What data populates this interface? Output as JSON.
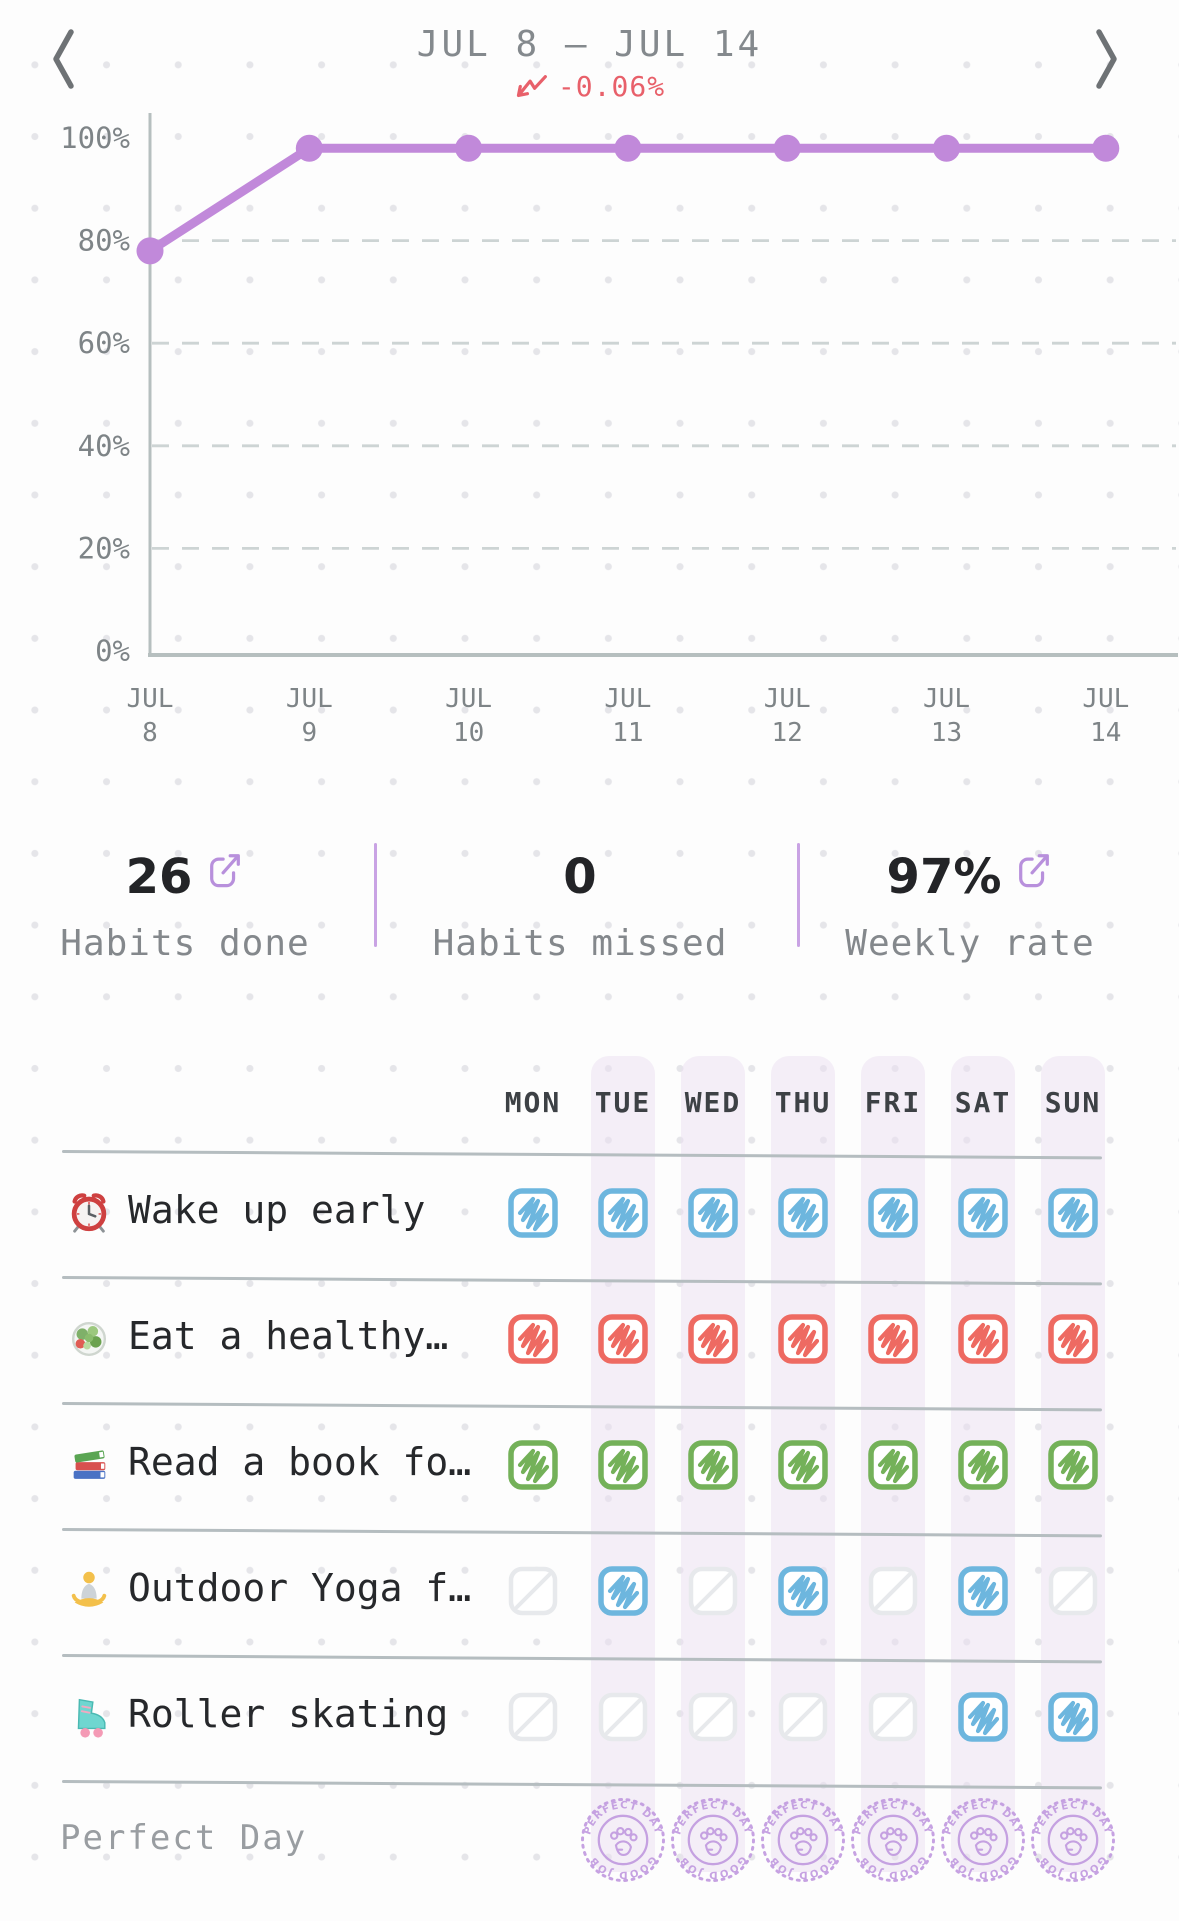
{
  "header": {
    "title": "JUL 8 — JUL 14",
    "trend_value": "-0.06%"
  },
  "chart_data": {
    "type": "line",
    "categories": [
      "JUL 8",
      "JUL 9",
      "JUL 10",
      "JUL 11",
      "JUL 12",
      "JUL 13",
      "JUL 14"
    ],
    "values": [
      78,
      98,
      98,
      98,
      98,
      98,
      98
    ],
    "yticks": [
      100,
      80,
      60,
      40,
      20,
      0
    ],
    "ylim": [
      0,
      100
    ],
    "title": "",
    "xlabel": "",
    "ylabel": "",
    "grid": "dashed-horizontal",
    "legend": "none",
    "line_color": "#c189da"
  },
  "stats": [
    {
      "value": "26",
      "label": "Habits done",
      "share_icon": true
    },
    {
      "value": "0",
      "label": "Habits missed",
      "share_icon": false
    },
    {
      "value": "97%",
      "label": "Weekly rate",
      "share_icon": true
    }
  ],
  "week_table": {
    "days": [
      "MON",
      "TUE",
      "WED",
      "THU",
      "FRI",
      "SAT",
      "SUN"
    ],
    "habits": [
      {
        "icon": "alarm-clock",
        "name": "Wake up early",
        "color": "#6db6de",
        "cells": [
          "done",
          "done",
          "done",
          "done",
          "done",
          "done",
          "done"
        ]
      },
      {
        "icon": "salad",
        "name": "Eat a healthy…",
        "color": "#ee6a62",
        "cells": [
          "done",
          "done",
          "done",
          "done",
          "done",
          "done",
          "done"
        ]
      },
      {
        "icon": "books",
        "name": "Read a book fo…",
        "color": "#74b159",
        "cells": [
          "done",
          "done",
          "done",
          "done",
          "done",
          "done",
          "done"
        ]
      },
      {
        "icon": "yoga",
        "name": "Outdoor Yoga f…",
        "color": "#6db6de",
        "cells": [
          "none",
          "done",
          "none",
          "done",
          "none",
          "done",
          "none"
        ]
      },
      {
        "icon": "roller-skate",
        "name": "Roller skating",
        "color": "#6db6de",
        "cells": [
          "none",
          "none",
          "none",
          "none",
          "none",
          "done",
          "done"
        ]
      }
    ],
    "perfect_day": {
      "label": "Perfect Day",
      "stamp_text_top": "PERFECT DAY",
      "stamp_text_bottom": "GOOD JOB",
      "days": [
        false,
        true,
        true,
        true,
        true,
        true,
        true
      ]
    }
  },
  "colors": {
    "accent_purple": "#c189da",
    "stamp_purple": "#c29ce0",
    "share_purple": "#b890dc",
    "trend_red": "#e8606a",
    "done_blue": "#6db6de",
    "done_red": "#ee6a62",
    "done_green": "#74b159",
    "empty_box": "#e7e9ec",
    "axis_gray": "#b6bfbf",
    "text_gray": "#7e8487"
  }
}
